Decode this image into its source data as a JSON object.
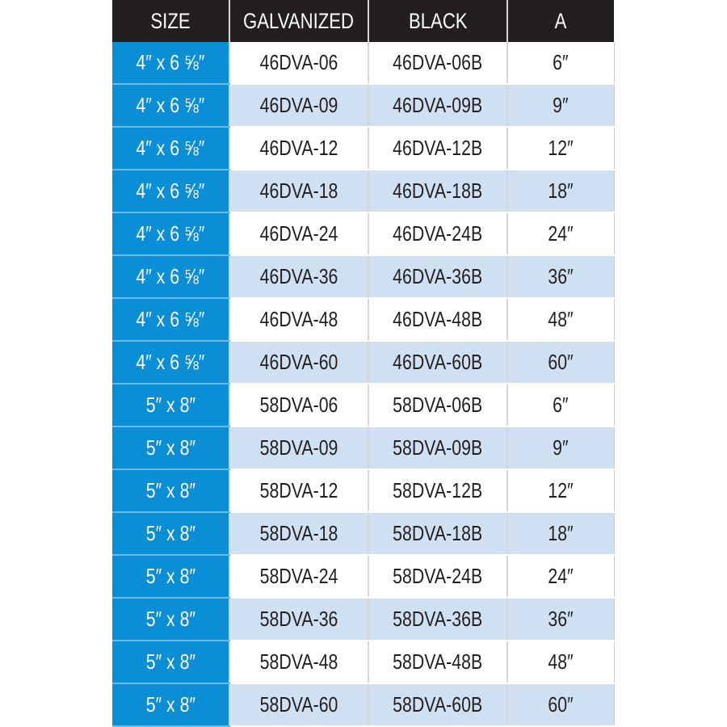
{
  "table": {
    "headers": [
      "SIZE",
      "GALVANIZED",
      "BLACK",
      "A"
    ],
    "rows": [
      [
        "4″ x 6 ⅝″",
        "46DVA-06",
        "46DVA-06B",
        "6″"
      ],
      [
        "4″ x 6 ⅝″",
        "46DVA-09",
        "46DVA-09B",
        "9″"
      ],
      [
        "4″ x 6 ⅝″",
        "46DVA-12",
        "46DVA-12B",
        "12″"
      ],
      [
        "4″ x 6 ⅝″",
        "46DVA-18",
        "46DVA-18B",
        "18″"
      ],
      [
        "4″ x 6 ⅝″",
        "46DVA-24",
        "46DVA-24B",
        "24″"
      ],
      [
        "4″ x 6 ⅝″",
        "46DVA-36",
        "46DVA-36B",
        "36″"
      ],
      [
        "4″ x 6 ⅝″",
        "46DVA-48",
        "46DVA-48B",
        "48″"
      ],
      [
        "4″ x 6 ⅝″",
        "46DVA-60",
        "46DVA-60B",
        "60″"
      ],
      [
        "5″ x 8″",
        "58DVA-06",
        "58DVA-06B",
        "6″"
      ],
      [
        "5″ x 8″",
        "58DVA-09",
        "58DVA-09B",
        "9″"
      ],
      [
        "5″ x 8″",
        "58DVA-12",
        "58DVA-12B",
        "12″"
      ],
      [
        "5″ x 8″",
        "58DVA-18",
        "58DVA-18B",
        "18″"
      ],
      [
        "5″ x 8″",
        "58DVA-24",
        "58DVA-24B",
        "24″"
      ],
      [
        "5″ x 8″",
        "58DVA-36",
        "58DVA-36B",
        "36″"
      ],
      [
        "5″ x 8″",
        "58DVA-48",
        "58DVA-48B",
        "48″"
      ],
      [
        "5″ x 8″",
        "58DVA-60",
        "58DVA-60B",
        "60″"
      ]
    ]
  },
  "colors": {
    "header_bg": "#231f20",
    "size_bg": "#0a8fd6",
    "alt_row_bg": "#cfe0f2"
  }
}
